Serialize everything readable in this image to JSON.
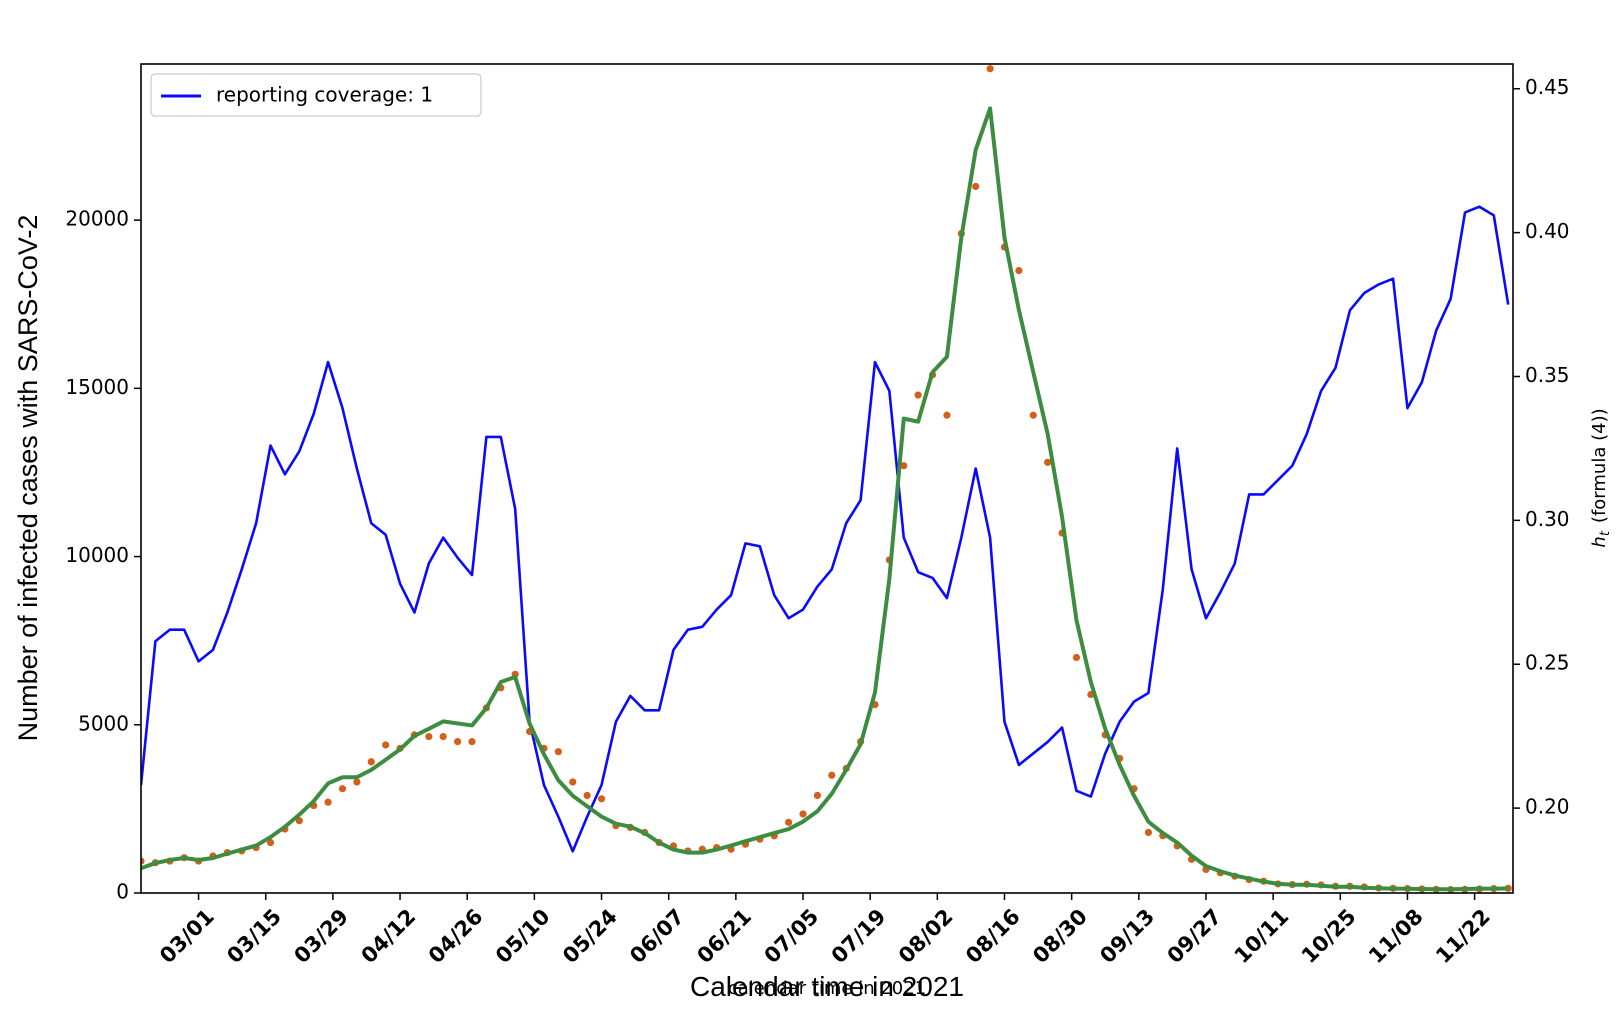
{
  "chart_data": {
    "type": "line",
    "y_label": "Number of infected cases with SARS-CoV-2",
    "x_label": "Calendar time in 2021",
    "x_label_overlay": "calendar time in 2021",
    "y2_label_symbol": "h",
    "y2_label_subscript": "t",
    "y2_label_text": "(formula (4))",
    "legend": "upper left",
    "x": [
      "02/17",
      "02/20",
      "02/23",
      "02/26",
      "03/01",
      "03/04",
      "03/07",
      "03/10",
      "03/13",
      "03/16",
      "03/19",
      "03/22",
      "03/25",
      "03/28",
      "03/31",
      "04/03",
      "04/06",
      "04/09",
      "04/12",
      "04/15",
      "04/18",
      "04/21",
      "04/24",
      "04/27",
      "04/30",
      "05/03",
      "05/06",
      "05/09",
      "05/12",
      "05/15",
      "05/18",
      "05/21",
      "05/24",
      "05/27",
      "05/30",
      "06/02",
      "06/05",
      "06/08",
      "06/11",
      "06/14",
      "06/17",
      "06/20",
      "06/23",
      "06/26",
      "06/29",
      "07/02",
      "07/05",
      "07/08",
      "07/11",
      "07/14",
      "07/17",
      "07/20",
      "07/23",
      "07/26",
      "07/29",
      "08/01",
      "08/04",
      "08/07",
      "08/10",
      "08/13",
      "08/16",
      "08/19",
      "08/22",
      "08/25",
      "08/28",
      "08/31",
      "09/03",
      "09/06",
      "09/09",
      "09/12",
      "09/15",
      "09/18",
      "09/21",
      "09/24",
      "09/27",
      "09/30",
      "10/03",
      "10/06",
      "10/09",
      "10/12",
      "10/15",
      "10/18",
      "10/21",
      "10/24",
      "10/27",
      "10/30",
      "11/02",
      "11/05",
      "11/08",
      "11/11",
      "11/14",
      "11/17",
      "11/20",
      "11/23",
      "11/26",
      "11/29"
    ],
    "xlim": [
      "02/17",
      "11/30"
    ],
    "xticks": [
      "03/01",
      "03/15",
      "03/29",
      "04/12",
      "04/26",
      "05/10",
      "05/24",
      "06/07",
      "06/21",
      "07/05",
      "07/19",
      "08/02",
      "08/16",
      "08/30",
      "09/13",
      "09/27",
      "10/11",
      "10/25",
      "11/08",
      "11/22"
    ],
    "ylim": [
      0,
      24640
    ],
    "yticks": [
      0,
      5000,
      10000,
      15000,
      20000
    ],
    "y2lim": [
      0.1705,
      0.4586
    ],
    "y2ticks": [
      {
        "value": 0.2,
        "label": "0.20"
      },
      0.25,
      {
        "value": 0.3,
        "label": "0.30"
      },
      0.35,
      {
        "value": 0.4,
        "label": "0.40"
      },
      0.45
    ],
    "series": [
      {
        "name": "reporting coverage: 1",
        "color": "#0a0aff",
        "style": "line",
        "axis": "y2",
        "values": [
          0.208,
          0.258,
          0.262,
          0.262,
          0.251,
          0.255,
          0.268,
          0.283,
          0.299,
          0.326,
          0.316,
          0.324,
          0.337,
          0.355,
          0.339,
          0.318,
          0.299,
          0.295,
          0.278,
          0.268,
          0.285,
          0.294,
          0.287,
          0.281,
          0.329,
          0.329,
          0.304,
          0.23,
          0.208,
          0.197,
          0.185,
          0.197,
          0.208,
          0.23,
          0.239,
          0.234,
          0.234,
          0.255,
          0.262,
          0.263,
          0.269,
          0.274,
          0.292,
          0.291,
          0.274,
          0.266,
          0.269,
          0.277,
          0.283,
          0.299,
          0.307,
          0.355,
          0.345,
          0.294,
          0.282,
          0.28,
          0.273,
          0.294,
          0.318,
          0.294,
          0.23,
          0.215,
          0.219,
          0.223,
          0.228,
          0.206,
          0.204,
          0.219,
          0.23,
          0.237,
          0.24,
          0.276,
          0.325,
          0.283,
          0.266,
          0.275,
          0.285,
          0.309,
          0.309,
          0.314,
          0.319,
          0.33,
          0.345,
          0.353,
          0.373,
          0.379,
          0.382,
          0.384,
          0.339,
          0.348,
          0.366,
          0.377,
          0.407,
          0.409,
          0.406,
          0.375
        ]
      },
      {
        "color": "#d2601a",
        "style": "dots",
        "values": [
          950,
          900,
          950,
          1050,
          950,
          1100,
          1200,
          1250,
          1350,
          1500,
          1900,
          2150,
          2600,
          2700,
          3100,
          3300,
          3900,
          4400,
          4300,
          4700,
          4650,
          4650,
          4500,
          4500,
          5500,
          6100,
          6500,
          4800,
          4300,
          4200,
          3300,
          2900,
          2800,
          2000,
          1950,
          1800,
          1500,
          1400,
          1250,
          1300,
          1350,
          1300,
          1450,
          1600,
          1700,
          2100,
          2350,
          2900,
          3500,
          3700,
          4500,
          5600,
          9900,
          12700,
          14800,
          15400,
          14200,
          19600,
          21000,
          24500,
          19200,
          18500,
          14200,
          12800,
          10700,
          7000,
          5900,
          4700,
          4000,
          3100,
          1800,
          1700,
          1400,
          1000,
          700,
          600,
          500,
          400,
          350,
          270,
          250,
          260,
          240,
          200,
          200,
          180,
          150,
          140,
          130,
          120,
          110,
          100,
          110,
          120,
          130,
          140
        ]
      },
      {
        "color": "#3d8c40",
        "style": "line",
        "values": [
          737,
          890,
          980,
          1040,
          980,
          1040,
          1170,
          1290,
          1410,
          1660,
          1970,
          2330,
          2730,
          3260,
          3440,
          3440,
          3660,
          3960,
          4270,
          4670,
          4880,
          5100,
          5040,
          4980,
          5500,
          6270,
          6420,
          5040,
          4120,
          3350,
          2890,
          2580,
          2270,
          2060,
          1970,
          1780,
          1500,
          1290,
          1200,
          1200,
          1290,
          1410,
          1540,
          1660,
          1780,
          1900,
          2120,
          2430,
          2950,
          3660,
          4420,
          5960,
          9340,
          14100,
          14010,
          15480,
          15940,
          19480,
          22090,
          23320,
          19480,
          17330,
          15480,
          13640,
          11180,
          8110,
          6270,
          4880,
          3810,
          2890,
          2120,
          1780,
          1500,
          1110,
          800,
          645,
          520,
          430,
          340,
          275,
          245,
          245,
          215,
          185,
          185,
          155,
          140,
          130,
          125,
          120,
          110,
          110,
          120,
          125,
          130,
          135
        ]
      }
    ]
  }
}
